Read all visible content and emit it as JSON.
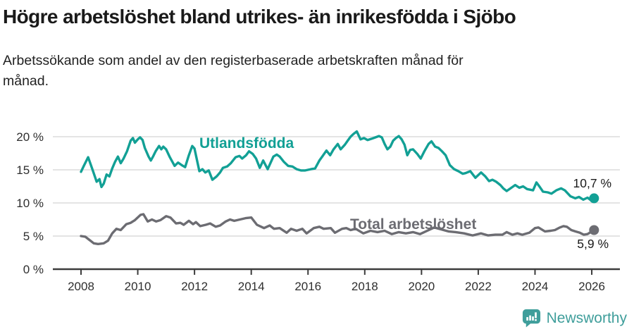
{
  "header": {
    "title": "Högre arbetslöshet bland utrikes- än inrikesfödda i Sjöbo",
    "subtitle": "Arbetssökande som andel av den registerbaserade arbetskraften månad för månad."
  },
  "footer": {
    "brand": "Newsworthy",
    "brand_color": "#3F9E9B",
    "logo_icon": "bar-chart-speech-bubble-icon"
  },
  "colors": {
    "foreign_line": "#12A095",
    "total_line": "#6C6C72",
    "grid": "#DBDBDB",
    "axis": "#3C3C3C",
    "tick_text": "#2E2E2E",
    "title_text": "#1A1A1A"
  },
  "chart_data": {
    "type": "line",
    "title": "Högre arbetslöshet bland utrikes- än inrikesfödda i Sjöbo",
    "subtitle": "Arbetssökande som andel av den registerbaserade arbetskraften månad för månad.",
    "grid": "horizontal",
    "legend_position": "inline-labels",
    "x_axis": {
      "ticks": [
        2008,
        2010,
        2012,
        2014,
        2016,
        2018,
        2020,
        2022,
        2024,
        2026
      ],
      "range": [
        2007.9,
        2026.3
      ]
    },
    "y_axis": {
      "tick_values": [
        0,
        5,
        10,
        15,
        20
      ],
      "tick_labels": [
        "0 %",
        "5 %",
        "10 %",
        "15 %",
        "20 %"
      ],
      "range": [
        0,
        21
      ],
      "unit": "%"
    },
    "series": [
      {
        "name": "Utlandsfödda",
        "color": "#12A095",
        "end_label": "10,7 %",
        "end_value": 10.7,
        "points": [
          [
            2008.0,
            14.7
          ],
          [
            2008.1,
            15.6
          ],
          [
            2008.25,
            16.9
          ],
          [
            2008.4,
            15.1
          ],
          [
            2008.55,
            13.2
          ],
          [
            2008.65,
            13.6
          ],
          [
            2008.72,
            12.4
          ],
          [
            2008.8,
            12.9
          ],
          [
            2008.9,
            14.3
          ],
          [
            2009.0,
            14.0
          ],
          [
            2009.1,
            15.2
          ],
          [
            2009.2,
            16.2
          ],
          [
            2009.3,
            17.0
          ],
          [
            2009.4,
            16.0
          ],
          [
            2009.5,
            16.7
          ],
          [
            2009.62,
            17.8
          ],
          [
            2009.75,
            19.4
          ],
          [
            2009.83,
            19.8
          ],
          [
            2009.9,
            19.1
          ],
          [
            2010.0,
            19.6
          ],
          [
            2010.08,
            19.9
          ],
          [
            2010.17,
            19.5
          ],
          [
            2010.25,
            18.3
          ],
          [
            2010.38,
            17.0
          ],
          [
            2010.46,
            16.4
          ],
          [
            2010.55,
            17.1
          ],
          [
            2010.63,
            17.8
          ],
          [
            2010.75,
            18.6
          ],
          [
            2010.83,
            18.1
          ],
          [
            2010.9,
            18.5
          ],
          [
            2011.0,
            18.1
          ],
          [
            2011.13,
            16.9
          ],
          [
            2011.3,
            15.6
          ],
          [
            2011.42,
            16.1
          ],
          [
            2011.55,
            15.7
          ],
          [
            2011.67,
            15.4
          ],
          [
            2011.8,
            17.2
          ],
          [
            2011.92,
            18.6
          ],
          [
            2012.0,
            18.2
          ],
          [
            2012.17,
            14.8
          ],
          [
            2012.28,
            15.1
          ],
          [
            2012.38,
            14.6
          ],
          [
            2012.5,
            14.9
          ],
          [
            2012.63,
            13.5
          ],
          [
            2012.78,
            14.0
          ],
          [
            2012.9,
            14.6
          ],
          [
            2013.0,
            15.3
          ],
          [
            2013.15,
            15.5
          ],
          [
            2013.28,
            16.0
          ],
          [
            2013.45,
            16.9
          ],
          [
            2013.58,
            17.1
          ],
          [
            2013.68,
            16.7
          ],
          [
            2013.82,
            17.2
          ],
          [
            2013.92,
            17.8
          ],
          [
            2014.05,
            17.4
          ],
          [
            2014.17,
            16.7
          ],
          [
            2014.3,
            15.3
          ],
          [
            2014.42,
            16.4
          ],
          [
            2014.58,
            15.1
          ],
          [
            2014.78,
            17.0
          ],
          [
            2014.9,
            17.3
          ],
          [
            2015.0,
            17.0
          ],
          [
            2015.15,
            16.2
          ],
          [
            2015.3,
            15.6
          ],
          [
            2015.45,
            15.5
          ],
          [
            2015.6,
            15.1
          ],
          [
            2015.75,
            14.9
          ],
          [
            2015.9,
            14.9
          ],
          [
            2016.1,
            15.1
          ],
          [
            2016.25,
            15.2
          ],
          [
            2016.4,
            16.4
          ],
          [
            2016.5,
            17.0
          ],
          [
            2016.65,
            17.9
          ],
          [
            2016.78,
            17.2
          ],
          [
            2016.9,
            18.1
          ],
          [
            2017.05,
            18.9
          ],
          [
            2017.15,
            18.1
          ],
          [
            2017.3,
            18.8
          ],
          [
            2017.4,
            19.4
          ],
          [
            2017.5,
            20.0
          ],
          [
            2017.6,
            20.4
          ],
          [
            2017.72,
            20.8
          ],
          [
            2017.85,
            19.6
          ],
          [
            2017.97,
            19.8
          ],
          [
            2018.1,
            19.5
          ],
          [
            2018.25,
            19.7
          ],
          [
            2018.38,
            19.9
          ],
          [
            2018.5,
            20.1
          ],
          [
            2018.6,
            19.9
          ],
          [
            2018.7,
            18.9
          ],
          [
            2018.8,
            18.1
          ],
          [
            2018.9,
            18.5
          ],
          [
            2019.0,
            19.4
          ],
          [
            2019.1,
            19.8
          ],
          [
            2019.2,
            20.1
          ],
          [
            2019.3,
            19.6
          ],
          [
            2019.4,
            18.8
          ],
          [
            2019.5,
            17.2
          ],
          [
            2019.6,
            18.0
          ],
          [
            2019.7,
            18.1
          ],
          [
            2019.85,
            17.4
          ],
          [
            2019.97,
            16.7
          ],
          [
            2020.1,
            17.8
          ],
          [
            2020.25,
            18.9
          ],
          [
            2020.35,
            19.3
          ],
          [
            2020.48,
            18.5
          ],
          [
            2020.6,
            18.3
          ],
          [
            2020.72,
            17.8
          ],
          [
            2020.85,
            17.2
          ],
          [
            2021.0,
            15.7
          ],
          [
            2021.15,
            15.1
          ],
          [
            2021.3,
            14.8
          ],
          [
            2021.45,
            14.4
          ],
          [
            2021.55,
            14.5
          ],
          [
            2021.72,
            14.8
          ],
          [
            2021.9,
            13.8
          ],
          [
            2022.1,
            14.6
          ],
          [
            2022.25,
            14.0
          ],
          [
            2022.38,
            13.3
          ],
          [
            2022.5,
            13.5
          ],
          [
            2022.63,
            13.2
          ],
          [
            2022.78,
            12.7
          ],
          [
            2022.88,
            12.2
          ],
          [
            2023.0,
            11.8
          ],
          [
            2023.17,
            12.3
          ],
          [
            2023.3,
            12.7
          ],
          [
            2023.45,
            12.3
          ],
          [
            2023.58,
            12.5
          ],
          [
            2023.72,
            12.1
          ],
          [
            2023.93,
            11.9
          ],
          [
            2024.05,
            13.1
          ],
          [
            2024.17,
            12.4
          ],
          [
            2024.28,
            11.7
          ],
          [
            2024.45,
            11.6
          ],
          [
            2024.58,
            11.4
          ],
          [
            2024.75,
            11.9
          ],
          [
            2024.92,
            12.2
          ],
          [
            2025.05,
            11.9
          ],
          [
            2025.25,
            11.0
          ],
          [
            2025.42,
            10.7
          ],
          [
            2025.55,
            10.9
          ],
          [
            2025.7,
            10.5
          ],
          [
            2025.85,
            10.8
          ],
          [
            2025.97,
            10.4
          ],
          [
            2026.08,
            10.7
          ]
        ]
      },
      {
        "name": "Total arbetslöshet",
        "color": "#6C6C72",
        "end_label": "5,9 %",
        "end_value": 5.9,
        "points": [
          [
            2008.0,
            5.0
          ],
          [
            2008.15,
            4.9
          ],
          [
            2008.3,
            4.4
          ],
          [
            2008.45,
            3.9
          ],
          [
            2008.6,
            3.8
          ],
          [
            2008.8,
            3.9
          ],
          [
            2008.95,
            4.3
          ],
          [
            2009.1,
            5.4
          ],
          [
            2009.25,
            6.1
          ],
          [
            2009.4,
            5.9
          ],
          [
            2009.6,
            6.8
          ],
          [
            2009.75,
            7.0
          ],
          [
            2009.9,
            7.4
          ],
          [
            2010.1,
            8.2
          ],
          [
            2010.2,
            8.3
          ],
          [
            2010.35,
            7.2
          ],
          [
            2010.5,
            7.5
          ],
          [
            2010.65,
            7.2
          ],
          [
            2010.8,
            7.4
          ],
          [
            2011.0,
            8.0
          ],
          [
            2011.15,
            7.8
          ],
          [
            2011.35,
            6.9
          ],
          [
            2011.5,
            7.0
          ],
          [
            2011.62,
            6.7
          ],
          [
            2011.8,
            7.3
          ],
          [
            2011.95,
            6.8
          ],
          [
            2012.05,
            7.1
          ],
          [
            2012.2,
            6.5
          ],
          [
            2012.4,
            6.7
          ],
          [
            2012.55,
            6.9
          ],
          [
            2012.75,
            6.4
          ],
          [
            2012.9,
            6.6
          ],
          [
            2013.1,
            7.2
          ],
          [
            2013.25,
            7.5
          ],
          [
            2013.4,
            7.3
          ],
          [
            2013.6,
            7.5
          ],
          [
            2013.8,
            7.7
          ],
          [
            2014.0,
            7.8
          ],
          [
            2014.2,
            6.7
          ],
          [
            2014.45,
            6.2
          ],
          [
            2014.65,
            6.6
          ],
          [
            2014.8,
            6.1
          ],
          [
            2015.0,
            6.2
          ],
          [
            2015.25,
            5.5
          ],
          [
            2015.4,
            6.1
          ],
          [
            2015.6,
            5.8
          ],
          [
            2015.8,
            6.1
          ],
          [
            2015.95,
            5.4
          ],
          [
            2016.2,
            6.2
          ],
          [
            2016.4,
            6.4
          ],
          [
            2016.55,
            6.1
          ],
          [
            2016.8,
            6.2
          ],
          [
            2016.95,
            5.5
          ],
          [
            2017.2,
            6.1
          ],
          [
            2017.35,
            6.2
          ],
          [
            2017.5,
            5.9
          ],
          [
            2017.68,
            6.1
          ],
          [
            2017.95,
            5.4
          ],
          [
            2018.2,
            5.8
          ],
          [
            2018.45,
            5.6
          ],
          [
            2018.7,
            5.8
          ],
          [
            2018.95,
            5.3
          ],
          [
            2019.2,
            5.6
          ],
          [
            2019.45,
            5.4
          ],
          [
            2019.7,
            5.6
          ],
          [
            2019.95,
            5.3
          ],
          [
            2020.2,
            5.8
          ],
          [
            2020.45,
            6.3
          ],
          [
            2020.7,
            6.0
          ],
          [
            2020.95,
            5.7
          ],
          [
            2021.2,
            5.6
          ],
          [
            2021.5,
            5.4
          ],
          [
            2021.8,
            5.1
          ],
          [
            2022.1,
            5.4
          ],
          [
            2022.35,
            5.1
          ],
          [
            2022.6,
            5.2
          ],
          [
            2022.85,
            5.2
          ],
          [
            2023.0,
            5.6
          ],
          [
            2023.2,
            5.2
          ],
          [
            2023.38,
            5.4
          ],
          [
            2023.55,
            5.2
          ],
          [
            2023.8,
            5.5
          ],
          [
            2024.0,
            6.2
          ],
          [
            2024.12,
            6.3
          ],
          [
            2024.35,
            5.7
          ],
          [
            2024.55,
            5.8
          ],
          [
            2024.7,
            5.9
          ],
          [
            2024.88,
            6.3
          ],
          [
            2025.0,
            6.5
          ],
          [
            2025.12,
            6.4
          ],
          [
            2025.28,
            5.9
          ],
          [
            2025.42,
            5.7
          ],
          [
            2025.58,
            5.5
          ],
          [
            2025.72,
            5.2
          ],
          [
            2025.85,
            5.3
          ],
          [
            2026.08,
            5.9
          ]
        ]
      }
    ]
  }
}
